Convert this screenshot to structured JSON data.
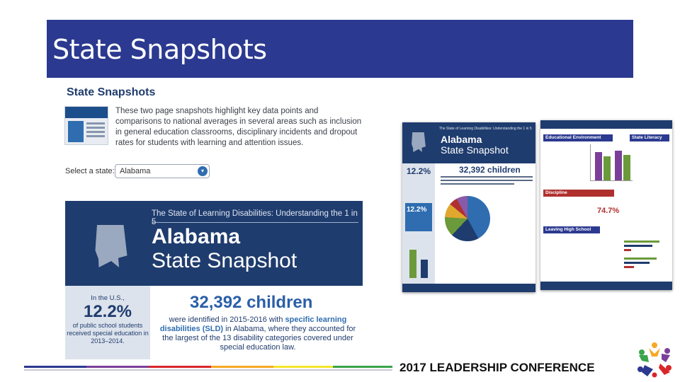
{
  "slide": {
    "title": "State Snapshots",
    "footer": "2017 LEADERSHIP CONFERENCE"
  },
  "webpage": {
    "heading": "State Snapshots",
    "description": "These two page snapshots highlight key data points and comparisons to national averages in several areas such as inclusion in general education classrooms, disciplinary incidents and dropout rates for students with learning and attention issues.",
    "select_label": "Select a state:",
    "select_value": "Alabama"
  },
  "snapshot": {
    "subtitle": "The State of Learning Disabilities: Understanding the 1 in 5",
    "title_line1": "Alabama",
    "title_line2": "State Snapshot",
    "us_label": "In the U.S.,",
    "us_pct": "12.2%",
    "us_desc": "of public school students received special education in 2013–2014.",
    "children_count": "32,392 children",
    "children_desc_a": "were identified in 2015-2016 with ",
    "children_desc_hl": "specific learning disabilities (SLD)",
    "children_desc_b": " in Alabama, where they accounted for the largest of the 13 disability categories covered under special education law."
  },
  "mid_page": {
    "alabama_pct": "12.2%"
  },
  "right_page": {
    "section_educational": "Educational Environment",
    "section_literacy": "State Literacy Laws",
    "section_discipline": "Discipline",
    "discipline_pct": "74.7%",
    "section_hs": "Leaving High School"
  },
  "colors": {
    "title_bar": "#2b3990",
    "snapshot_navy": "#1f3c6e",
    "accent_blue": "#2f6db0",
    "footer_stripes": [
      "#2b3990",
      "#7b3f99",
      "#d9262a",
      "#f7a823",
      "#f5e52b",
      "#3aa54a"
    ]
  }
}
